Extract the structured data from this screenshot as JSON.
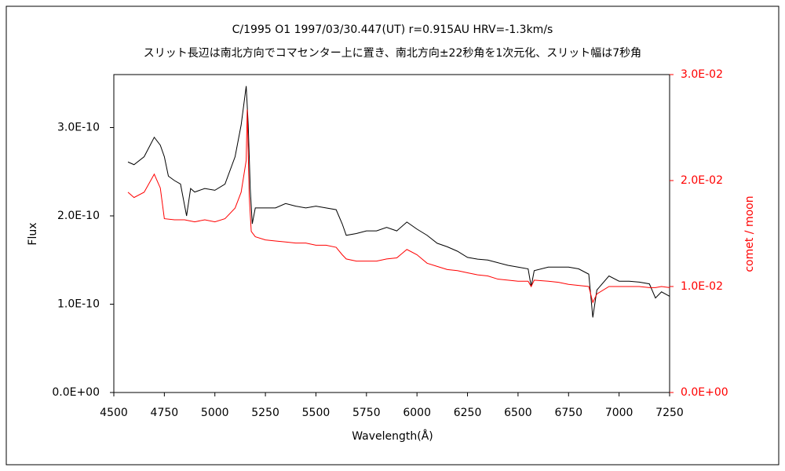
{
  "chart_data": {
    "type": "line",
    "title": "C/1995 O1    1997/03/30.447(UT)    r=0.915AU    HRV=-1.3km/s",
    "subtitle": "スリット長辺は南北方向でコマセンター上に置き、南北方向±22秒角を1次元化、スリット幅は7秒角",
    "x_label": "Wavelength(Å)",
    "y_label": "Flux",
    "y2_label": "comet / moon",
    "xlim": [
      4500,
      7250
    ],
    "xticks": [
      4500,
      4750,
      5000,
      5250,
      5500,
      5750,
      6000,
      6250,
      6500,
      6750,
      7000,
      7250
    ],
    "ylim": [
      0,
      3.6e-10
    ],
    "yticks": [
      {
        "value": 0,
        "label": "0.0E+00"
      },
      {
        "value": 1e-10,
        "label": "1.0E-10"
      },
      {
        "value": 2e-10,
        "label": "2.0E-10"
      },
      {
        "value": 3e-10,
        "label": "3.0E-10"
      }
    ],
    "y2lim": [
      0,
      0.03
    ],
    "y2ticks": [
      {
        "value": 0,
        "label": "0.0E+00"
      },
      {
        "value": 0.01,
        "label": "1.0E-02"
      },
      {
        "value": 0.02,
        "label": "2.0E-02"
      },
      {
        "value": 0.03,
        "label": "3.0E-02"
      }
    ],
    "y2_color": "#ff0000",
    "series": [
      {
        "color": "#000000",
        "x": [
          4570,
          4600,
          4650,
          4700,
          4730,
          4750,
          4770,
          4800,
          4830,
          4860,
          4880,
          4900,
          4950,
          5000,
          5050,
          5100,
          5130,
          5155,
          5165,
          5175,
          5185,
          5200,
          5250,
          5300,
          5350,
          5400,
          5450,
          5500,
          5550,
          5600,
          5630,
          5650,
          5700,
          5750,
          5800,
          5850,
          5900,
          5950,
          6000,
          6050,
          6100,
          6150,
          6200,
          6250,
          6300,
          6350,
          6400,
          6450,
          6500,
          6550,
          6565,
          6580,
          6650,
          6700,
          6750,
          6800,
          6850,
          6870,
          6890,
          6950,
          7000,
          7050,
          7100,
          7150,
          7180,
          7210,
          7250
        ],
        "values": [
          2.61e-10,
          2.58e-10,
          2.67e-10,
          2.89e-10,
          2.8e-10,
          2.67e-10,
          2.45e-10,
          2.4e-10,
          2.36e-10,
          2e-10,
          2.31e-10,
          2.27e-10,
          2.31e-10,
          2.29e-10,
          2.36e-10,
          2.67e-10,
          3.03e-10,
          3.47e-10,
          3.03e-10,
          2.31e-10,
          1.91e-10,
          2.09e-10,
          2.09e-10,
          2.09e-10,
          2.14e-10,
          2.11e-10,
          2.09e-10,
          2.11e-10,
          2.09e-10,
          2.07e-10,
          1.91e-10,
          1.78e-10,
          1.8e-10,
          1.83e-10,
          1.83e-10,
          1.87e-10,
          1.83e-10,
          1.93e-10,
          1.85e-10,
          1.78e-10,
          1.69e-10,
          1.65e-10,
          1.6e-10,
          1.53e-10,
          1.51e-10,
          1.5e-10,
          1.47e-10,
          1.44e-10,
          1.42e-10,
          1.4e-10,
          1.2e-10,
          1.38e-10,
          1.42e-10,
          1.42e-10,
          1.42e-10,
          1.4e-10,
          1.34e-10,
          8.5e-11,
          1.16e-10,
          1.32e-10,
          1.26e-10,
          1.26e-10,
          1.25e-10,
          1.23e-10,
          1.07e-10,
          1.14e-10,
          1.09e-10
        ]
      },
      {
        "color": "#ff0000",
        "axis": "y2",
        "x": [
          4570,
          4600,
          4650,
          4700,
          4730,
          4750,
          4800,
          4850,
          4900,
          4950,
          5000,
          5050,
          5100,
          5130,
          5155,
          5160,
          5170,
          5180,
          5200,
          5250,
          5300,
          5350,
          5400,
          5450,
          5500,
          5550,
          5600,
          5630,
          5650,
          5700,
          5750,
          5800,
          5850,
          5900,
          5950,
          6000,
          6050,
          6100,
          6150,
          6200,
          6250,
          6300,
          6350,
          6400,
          6450,
          6500,
          6550,
          6565,
          6580,
          6650,
          6700,
          6750,
          6800,
          6850,
          6870,
          6890,
          6950,
          7000,
          7050,
          7100,
          7150,
          7180,
          7210,
          7250
        ],
        "values": [
          0.0189,
          0.0184,
          0.0189,
          0.0206,
          0.0193,
          0.0164,
          0.0163,
          0.0163,
          0.0161,
          0.0163,
          0.0161,
          0.0164,
          0.0174,
          0.0189,
          0.0219,
          0.0267,
          0.0185,
          0.0152,
          0.0147,
          0.0144,
          0.0143,
          0.0142,
          0.0141,
          0.0141,
          0.0139,
          0.0139,
          0.0137,
          0.013,
          0.0126,
          0.0124,
          0.0124,
          0.0124,
          0.0126,
          0.0127,
          0.0135,
          0.013,
          0.0122,
          0.0119,
          0.0116,
          0.0115,
          0.0113,
          0.0111,
          0.011,
          0.0107,
          0.0106,
          0.0105,
          0.0105,
          0.01,
          0.0106,
          0.0105,
          0.0104,
          0.0102,
          0.0101,
          0.01,
          0.0085,
          0.0093,
          0.01,
          0.01,
          0.01,
          0.01,
          0.0099,
          0.0099,
          0.01,
          0.0099
        ]
      }
    ]
  }
}
